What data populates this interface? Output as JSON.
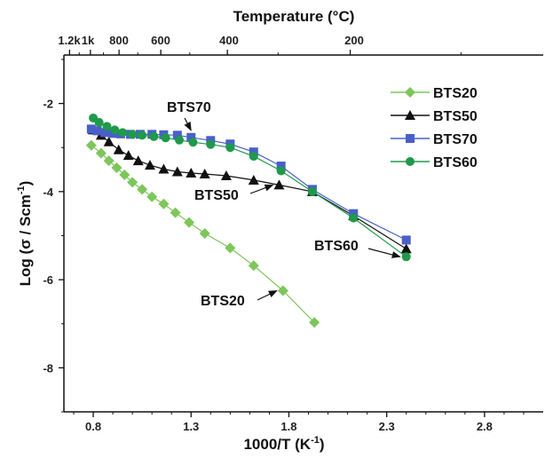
{
  "chart_data": {
    "type": "scatter",
    "xlabel": "1000/T (K",
    "xlabel_sup": "-1",
    "xlabel_end": ")",
    "ylabel": "Log (σ / Scm",
    "ylabel_sup": "-1",
    "ylabel_end": ")",
    "top_axis_label": "Temperature (°C)",
    "xlim": [
      0.65,
      3.1
    ],
    "ylim": [
      -9.0,
      -0.9
    ],
    "x_ticks": [
      0.8,
      1.3,
      1.8,
      2.3,
      2.8
    ],
    "x_tick_labels": [
      "0.8",
      "1.3",
      "1.8",
      "2.3",
      "2.8"
    ],
    "y_ticks": [
      -2,
      -4,
      -6,
      -8
    ],
    "y_tick_labels": [
      "-2",
      "-4",
      "-6",
      "-8"
    ],
    "top_ticks": [
      1200,
      1000,
      800,
      600,
      400,
      200
    ],
    "top_tick_labels": [
      "1.2k",
      "1k",
      "800",
      "600",
      "400",
      "200"
    ],
    "grid": false,
    "legend_position": "top-right",
    "series": [
      {
        "name": "BTS20",
        "color": "#7dc65a",
        "marker": "diamond",
        "x": [
          0.79,
          0.84,
          0.88,
          0.92,
          0.96,
          1.0,
          1.05,
          1.1,
          1.16,
          1.22,
          1.29,
          1.37,
          1.5,
          1.62,
          1.77,
          1.93
        ],
        "y": [
          -2.95,
          -3.13,
          -3.3,
          -3.46,
          -3.62,
          -3.79,
          -3.95,
          -4.12,
          -4.28,
          -4.48,
          -4.7,
          -4.95,
          -5.28,
          -5.68,
          -6.25,
          -6.97
        ]
      },
      {
        "name": "BTS50",
        "color": "#111111",
        "marker": "triangle",
        "x": [
          0.8,
          0.84,
          0.88,
          0.93,
          0.98,
          1.03,
          1.09,
          1.16,
          1.23,
          1.3,
          1.37,
          1.48,
          1.62,
          1.75,
          1.92,
          2.13,
          2.4
        ],
        "y": [
          -2.6,
          -2.72,
          -2.87,
          -3.05,
          -3.18,
          -3.3,
          -3.4,
          -3.49,
          -3.55,
          -3.58,
          -3.6,
          -3.64,
          -3.74,
          -3.85,
          -4.0,
          -4.55,
          -5.3
        ]
      },
      {
        "name": "BTS70",
        "color": "#4a5fc8",
        "marker": "square",
        "x": [
          0.79,
          0.82,
          0.86,
          0.9,
          0.94,
          0.99,
          1.04,
          1.1,
          1.16,
          1.23,
          1.3,
          1.4,
          1.5,
          1.62,
          1.76,
          1.92,
          2.13,
          2.4
        ],
        "y": [
          -2.58,
          -2.62,
          -2.66,
          -2.68,
          -2.69,
          -2.7,
          -2.7,
          -2.7,
          -2.71,
          -2.72,
          -2.77,
          -2.84,
          -2.92,
          -3.1,
          -3.42,
          -3.95,
          -4.5,
          -5.1
        ]
      },
      {
        "name": "BTS60",
        "color": "#1e9a4a",
        "marker": "circle",
        "x": [
          0.8,
          0.83,
          0.87,
          0.91,
          0.95,
          1.0,
          1.05,
          1.11,
          1.17,
          1.24,
          1.31,
          1.4,
          1.5,
          1.62,
          1.76,
          1.92,
          2.13,
          2.4
        ],
        "y": [
          -2.33,
          -2.43,
          -2.52,
          -2.6,
          -2.66,
          -2.7,
          -2.72,
          -2.75,
          -2.78,
          -2.83,
          -2.88,
          -2.93,
          -3.0,
          -3.2,
          -3.53,
          -4.0,
          -4.6,
          -5.48
        ]
      }
    ],
    "annotations": [
      {
        "text": "BTS70",
        "arrow": true,
        "target": [
          1.3,
          -2.77
        ]
      },
      {
        "text": "BTS50",
        "arrow": true,
        "target": [
          1.75,
          -3.85
        ]
      },
      {
        "text": "BTS60",
        "arrow": true,
        "target": [
          2.4,
          -5.48
        ]
      },
      {
        "text": "BTS20",
        "arrow": true,
        "target": [
          1.77,
          -6.25
        ]
      }
    ]
  }
}
